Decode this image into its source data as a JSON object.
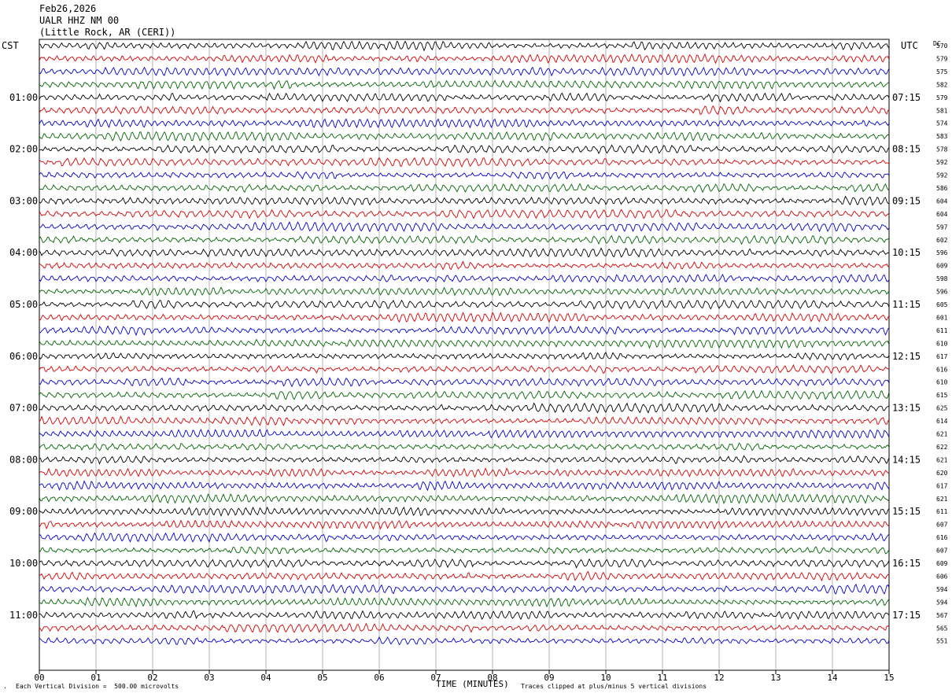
{
  "header": {
    "date": "Feb26,2026",
    "station": "UALR HHZ NM 00",
    "location": "(Little Rock, AR (CERI))"
  },
  "left_tz": "CST",
  "right_tz": "UTC",
  "dc_label": "DC",
  "footer": {
    "scale": "Each Vertical Division =  500.00 microvolts",
    "clip": "Traces clipped at plus/minus 5 vertical divisions",
    "xlabel": "TIME (MINUTES)"
  },
  "colors": {
    "trace": [
      "#000000",
      "#d40000",
      "#0000c8",
      "#006400"
    ],
    "grid": "#808080"
  },
  "chart_data": {
    "type": "line",
    "description_kind": "helicorder",
    "xlabel": "TIME (MINUTES)",
    "xlim": [
      0,
      15
    ],
    "x_ticks": [
      "00",
      "01",
      "02",
      "03",
      "04",
      "05",
      "06",
      "07",
      "08",
      "09",
      "10",
      "11",
      "12",
      "13",
      "14",
      "15"
    ],
    "row_minutes": 15,
    "left_hour_labels": [
      "01:00",
      "02:00",
      "03:00",
      "04:00",
      "05:00",
      "06:00",
      "07:00",
      "08:00",
      "09:00",
      "10:00",
      "11:00"
    ],
    "right_hour_labels": [
      "07:15",
      "08:15",
      "09:15",
      "10:15",
      "11:15",
      "12:15",
      "13:15",
      "14:15",
      "15:15",
      "16:15",
      "17:15"
    ],
    "dc_offsets": [
      570,
      579,
      575,
      582,
      579,
      581,
      574,
      583,
      578,
      592,
      592,
      586,
      604,
      604,
      597,
      602,
      596,
      609,
      598,
      596,
      605,
      601,
      611,
      610,
      617,
      616,
      610,
      615,
      625,
      614,
      621,
      622,
      621,
      620,
      617,
      621,
      611,
      607,
      616,
      607,
      609,
      606,
      594,
      594,
      567,
      565,
      551
    ]
  }
}
